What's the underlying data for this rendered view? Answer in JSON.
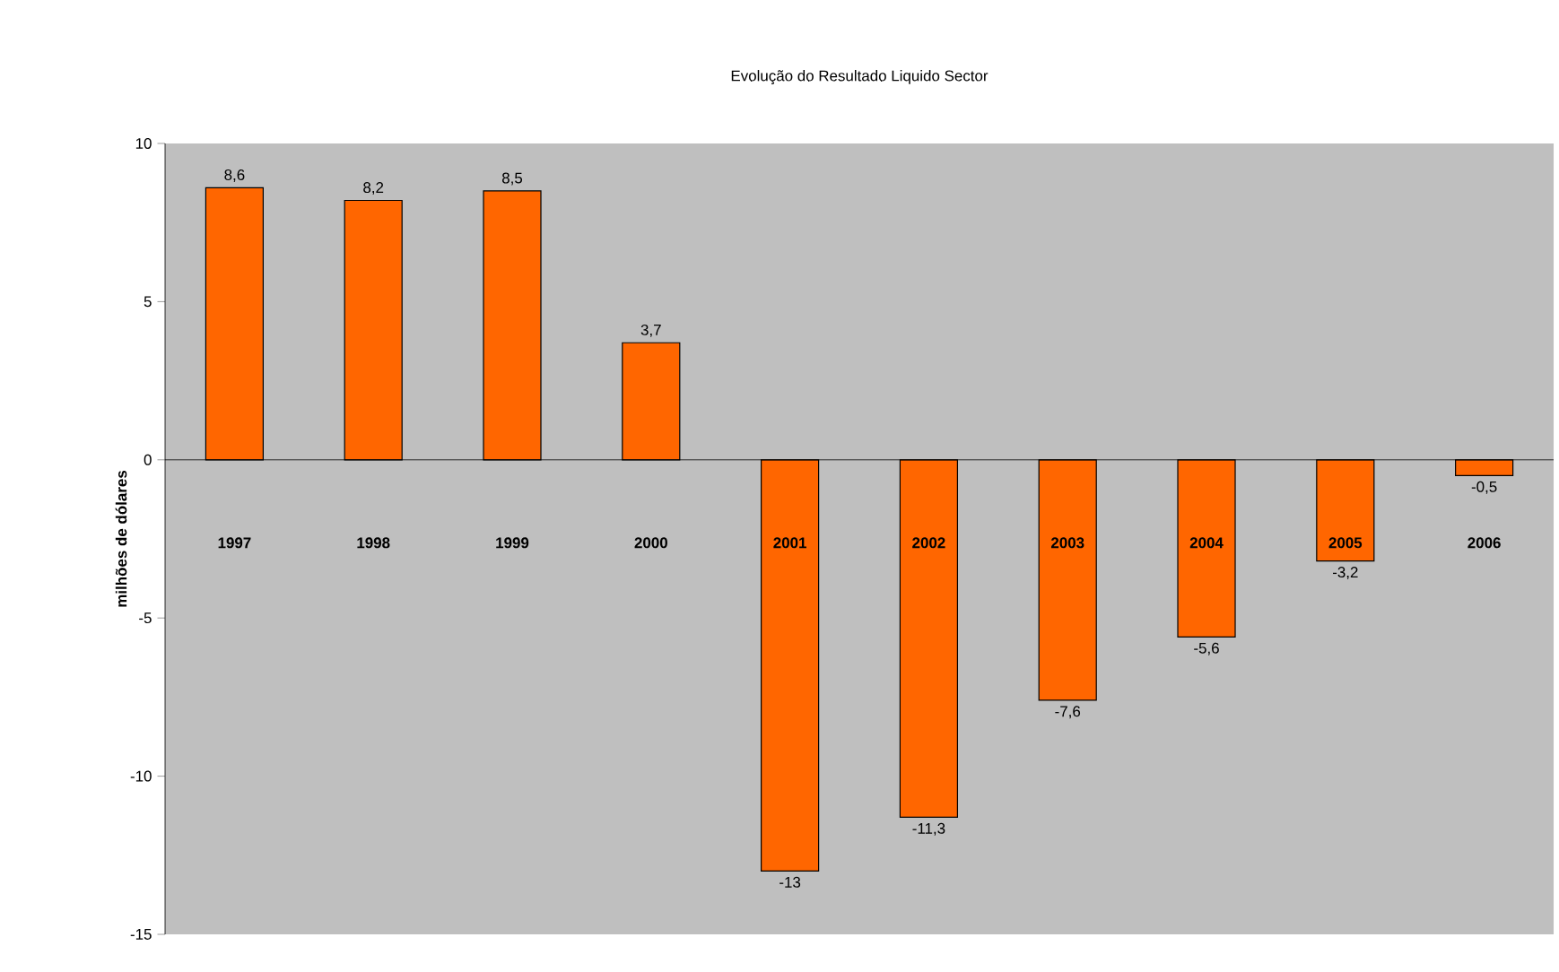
{
  "chart_data": {
    "type": "bar",
    "title": "Evolução do Resultado Liquido Sector",
    "ylabel": "milhões de dólares",
    "categories": [
      "1997",
      "1998",
      "1999",
      "2000",
      "2001",
      "2002",
      "2003",
      "2004",
      "2005",
      "2006"
    ],
    "values": [
      8.6,
      8.2,
      8.5,
      3.7,
      -13,
      -11.3,
      -7.6,
      -5.6,
      -3.2,
      -0.5
    ],
    "value_labels": [
      "8,6",
      "8,2",
      "8,5",
      "3,7",
      "-13",
      "-11,3",
      "-7,6",
      "-5,6",
      "-3,2",
      "-0,5"
    ],
    "color": "#ff6600",
    "ylim": [
      -15,
      10
    ],
    "yticks": [
      -15,
      -10,
      -5,
      0,
      5,
      10
    ]
  }
}
